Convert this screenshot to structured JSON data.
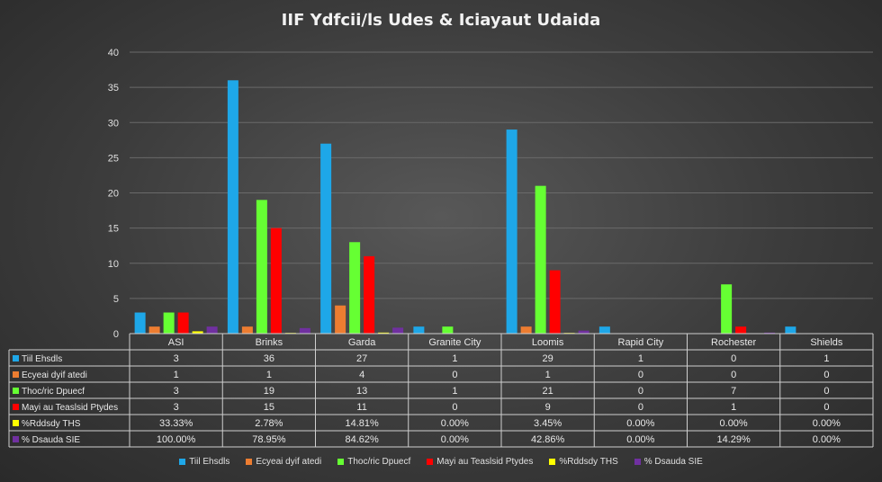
{
  "chart_data": {
    "type": "bar",
    "title": "IIF Ydfcii/ls Udes & Iciayaut Udaida",
    "categories": [
      "ASI",
      "Brinks",
      "Garda",
      "Granite City",
      "Loomis",
      "Rapid City",
      "Rochester",
      "Shields"
    ],
    "ylim": [
      0,
      40
    ],
    "yticks": [
      0,
      5,
      10,
      15,
      20,
      25,
      30,
      35,
      40
    ],
    "grid": true,
    "legend_position": "bottom",
    "series": [
      {
        "name": "Tiil Ehsdls",
        "color": "#1ea7e8",
        "values": [
          3,
          36,
          27,
          1,
          29,
          1,
          0,
          1
        ],
        "labels": [
          "3",
          "36",
          "27",
          "1",
          "29",
          "1",
          "0",
          "1"
        ]
      },
      {
        "name": "Ecyeai dyif atedi",
        "color": "#ed7d31",
        "values": [
          1,
          1,
          4,
          0,
          1,
          0,
          0,
          0
        ],
        "labels": [
          "1",
          "1",
          "4",
          "0",
          "1",
          "0",
          "0",
          "0"
        ]
      },
      {
        "name": "Thoc/ric Dpuecf",
        "color": "#66ff33",
        "values": [
          3,
          19,
          13,
          1,
          21,
          0,
          7,
          0
        ],
        "labels": [
          "3",
          "19",
          "13",
          "1",
          "21",
          "0",
          "7",
          "0"
        ]
      },
      {
        "name": "Mayi au Teaslsid Ptydes",
        "color": "#ff0000",
        "values": [
          3,
          15,
          11,
          0,
          9,
          0,
          1,
          0
        ],
        "labels": [
          "3",
          "15",
          "11",
          "0",
          "9",
          "0",
          "1",
          "0"
        ]
      },
      {
        "name": "%Rddsdy THS",
        "color": "#ffff00",
        "values": [
          0.3333,
          0.0278,
          0.1481,
          0,
          0.0345,
          0,
          0,
          0
        ],
        "labels": [
          "33.33%",
          "2.78%",
          "14.81%",
          "0.00%",
          "3.45%",
          "0.00%",
          "0.00%",
          "0.00%"
        ]
      },
      {
        "name": "% Dsauda SIE",
        "color": "#7030a0",
        "values": [
          1.0,
          0.7895,
          0.8462,
          0,
          0.4286,
          0,
          0.1429,
          0
        ],
        "labels": [
          "100.00%",
          "78.95%",
          "84.62%",
          "0.00%",
          "42.86%",
          "0.00%",
          "14.29%",
          "0.00%"
        ]
      }
    ]
  }
}
